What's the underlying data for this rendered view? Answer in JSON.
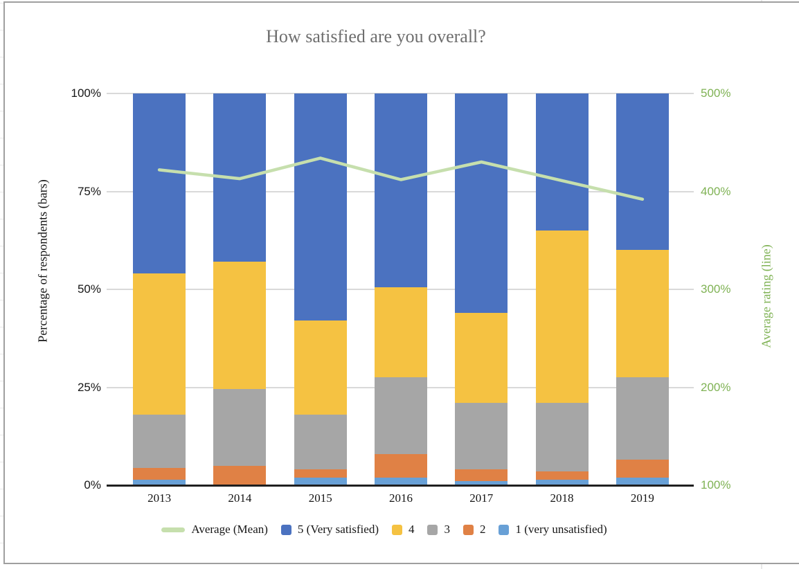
{
  "chart_data": {
    "type": "bar",
    "subtype": "stacked-bar-with-line",
    "title": "How satisfied are you overall?",
    "categories": [
      "2013",
      "2014",
      "2015",
      "2016",
      "2017",
      "2018",
      "2019"
    ],
    "series": [
      {
        "name": "1 (very unsatisfied)",
        "type": "bar",
        "color": "#68a0d6",
        "values": [
          1.5,
          0,
          2,
          2,
          1,
          1.5,
          2
        ]
      },
      {
        "name": "2",
        "type": "bar",
        "color": "#e08145",
        "values": [
          3,
          5,
          2,
          6,
          3,
          2,
          4.5
        ]
      },
      {
        "name": "3",
        "type": "bar",
        "color": "#a6a6a6",
        "values": [
          13.5,
          19.5,
          14,
          19.5,
          17,
          17.5,
          21
        ]
      },
      {
        "name": "4",
        "type": "bar",
        "color": "#f5c242",
        "values": [
          36,
          32.5,
          24,
          23,
          23,
          44,
          32.5
        ]
      },
      {
        "name": "5 (Very satisfied)",
        "type": "bar",
        "color": "#4b72c0",
        "values": [
          46,
          43,
          58,
          49.5,
          56,
          35,
          40
        ]
      },
      {
        "name": "Average (Mean)",
        "type": "line",
        "axis": "right",
        "color": "#c6dfad",
        "values": [
          422,
          413,
          434,
          412,
          430,
          411,
          392
        ]
      }
    ],
    "left_axis": {
      "label": "Percentage of respondents (bars)",
      "ticks": [
        "0%",
        "25%",
        "50%",
        "75%",
        "100%"
      ],
      "range": [
        0,
        100
      ],
      "tick_color": "#161616"
    },
    "right_axis": {
      "label": "Average rating (line)",
      "ticks": [
        "100%",
        "200%",
        "300%",
        "400%",
        "500%"
      ],
      "range": [
        100,
        500
      ],
      "tick_color": "#7fb254"
    },
    "legend_position": "bottom",
    "grid": true,
    "legend": [
      {
        "label": "Average (Mean)",
        "color": "#c6dfad",
        "shape": "line"
      },
      {
        "label": "5 (Very satisfied)",
        "color": "#4b72c0",
        "shape": "square"
      },
      {
        "label": "4",
        "color": "#f5c242",
        "shape": "square"
      },
      {
        "label": "3",
        "color": "#a6a6a6",
        "shape": "square"
      },
      {
        "label": "2",
        "color": "#e08145",
        "shape": "square"
      },
      {
        "label": "1 (very unsatisfied)",
        "color": "#68a0d6",
        "shape": "square"
      }
    ]
  },
  "frame": {
    "border_color": "#9f9f9f",
    "gridline_color": "#d9d9d9",
    "axis_line_color": "#1f1f1f",
    "title_color": "#6e6e6e"
  }
}
